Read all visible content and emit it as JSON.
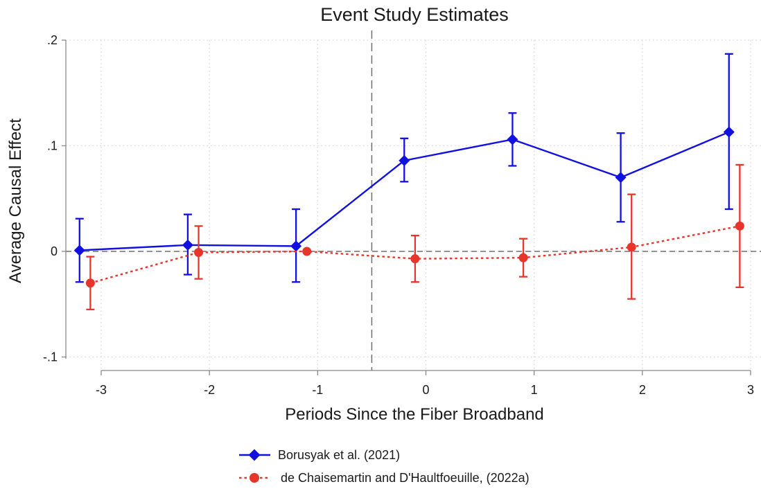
{
  "chart_data": {
    "type": "line",
    "title": "Event Study Estimates",
    "xlabel": "Periods Since the Fiber Broadband",
    "ylabel": "Average Causal Effect",
    "xlim": [
      -3.2,
      3.2
    ],
    "ylim": [
      -0.1,
      0.2
    ],
    "x_ticks": [
      {
        "value": -3,
        "label": "-3"
      },
      {
        "value": -2,
        "label": "-2"
      },
      {
        "value": -1,
        "label": "-1"
      },
      {
        "value": 0,
        "label": "0"
      },
      {
        "value": 1,
        "label": "1"
      },
      {
        "value": 2,
        "label": "2"
      },
      {
        "value": 3,
        "label": "3"
      }
    ],
    "y_ticks": [
      {
        "value": -0.1,
        "label": "-.1"
      },
      {
        "value": 0,
        "label": "0"
      },
      {
        "value": 0.1,
        "label": ".1"
      },
      {
        "value": 0.2,
        "label": ".2"
      }
    ],
    "grid": true,
    "reference_lines": {
      "x": -0.5,
      "y": 0
    },
    "legend_position": "bottom",
    "series": [
      {
        "name": "Borusyak et al. (2021)",
        "color": "#1010e0",
        "marker": "diamond",
        "line_style": "solid",
        "points": [
          {
            "x": -3.2,
            "y": 0.001,
            "lo": -0.029,
            "hi": 0.031
          },
          {
            "x": -2.2,
            "y": 0.006,
            "lo": -0.022,
            "hi": 0.035
          },
          {
            "x": -1.2,
            "y": 0.005,
            "lo": -0.029,
            "hi": 0.04
          },
          {
            "x": -0.2,
            "y": 0.086,
            "lo": 0.066,
            "hi": 0.107
          },
          {
            "x": 0.8,
            "y": 0.106,
            "lo": 0.081,
            "hi": 0.131
          },
          {
            "x": 1.8,
            "y": 0.07,
            "lo": 0.028,
            "hi": 0.112
          },
          {
            "x": 2.8,
            "y": 0.113,
            "lo": 0.04,
            "hi": 0.187
          }
        ]
      },
      {
        "name": "de Chaisemartin and D'Haultfoeuille, (2022a)",
        "color": "#e8352b",
        "marker": "circle",
        "line_style": "dotted",
        "points": [
          {
            "x": -3.1,
            "y": -0.03,
            "lo": -0.055,
            "hi": -0.005
          },
          {
            "x": -2.1,
            "y": -0.001,
            "lo": -0.026,
            "hi": 0.024
          },
          {
            "x": -1.1,
            "y": 0.0,
            "lo": 0.0,
            "hi": 0.0
          },
          {
            "x": -0.1,
            "y": -0.007,
            "lo": -0.029,
            "hi": 0.015
          },
          {
            "x": 0.9,
            "y": -0.006,
            "lo": -0.024,
            "hi": 0.012
          },
          {
            "x": 1.9,
            "y": 0.004,
            "lo": -0.045,
            "hi": 0.054
          },
          {
            "x": 2.9,
            "y": 0.024,
            "lo": -0.034,
            "hi": 0.082
          }
        ]
      }
    ]
  }
}
